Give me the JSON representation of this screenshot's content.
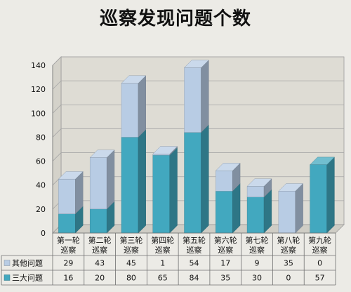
{
  "chart_data": {
    "type": "bar",
    "stacked": true,
    "title": "巡察发现问题个数",
    "categories": [
      [
        "第一轮",
        "巡察"
      ],
      [
        "第二轮",
        "巡察"
      ],
      [
        "第三轮",
        "巡察"
      ],
      [
        "第四轮",
        "巡察"
      ],
      [
        "第五轮",
        "巡察"
      ],
      [
        "第六轮",
        "巡察"
      ],
      [
        "第七轮",
        "巡察"
      ],
      [
        "第八轮",
        "巡察"
      ],
      [
        "第九轮",
        "巡察"
      ]
    ],
    "series": [
      {
        "name": "三大问题",
        "color": "#42a8bf",
        "values": [
          16,
          20,
          80,
          65,
          84,
          35,
          30,
          0,
          57
        ]
      },
      {
        "name": "其他问题",
        "color": "#b8cce4",
        "values": [
          29,
          43,
          45,
          1,
          54,
          17,
          9,
          35,
          0
        ]
      }
    ],
    "ylim": [
      0,
      140
    ],
    "yticks": [
      0,
      20,
      40,
      60,
      80,
      100,
      120,
      140
    ],
    "grid": true,
    "data_table": true,
    "table_rows_order": [
      "其他问题",
      "三大问题"
    ]
  }
}
